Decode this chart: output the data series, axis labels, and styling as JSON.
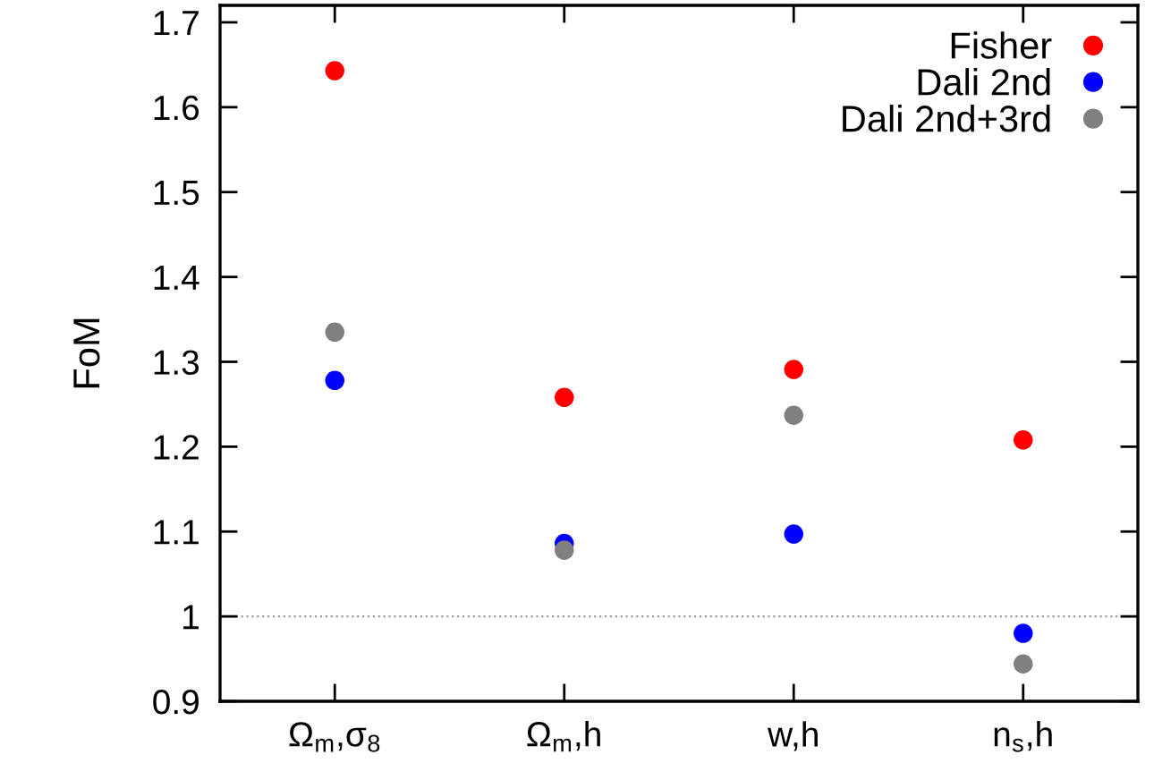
{
  "chart_data": {
    "type": "scatter",
    "ylabel": "FoM",
    "categories": [
      "Ω$_{m}$,σ$_{8}$",
      "Ω$_{m}$,h",
      "w,h",
      "n$_{s}$,h"
    ],
    "series": [
      {
        "name": "Fisher",
        "color": "#ff0000",
        "values": [
          1.643,
          1.258,
          1.291,
          1.208
        ]
      },
      {
        "name": "Dali 2nd",
        "color": "#0000ff",
        "values": [
          1.278,
          1.086,
          1.097,
          0.98
        ]
      },
      {
        "name": "Dali 2nd+3rd",
        "color": "#808080",
        "values": [
          1.335,
          1.078,
          1.237,
          0.944
        ]
      }
    ],
    "ylim": [
      0.9,
      1.72
    ],
    "yticks": [
      0.9,
      1,
      1.1,
      1.2,
      1.3,
      1.4,
      1.5,
      1.6,
      1.7
    ],
    "ref_lines": [
      {
        "axis": "y",
        "value": 1,
        "color": "#999999",
        "line_style": "dotted"
      }
    ],
    "marker": "circle",
    "legend": "top right",
    "grid": false
  }
}
